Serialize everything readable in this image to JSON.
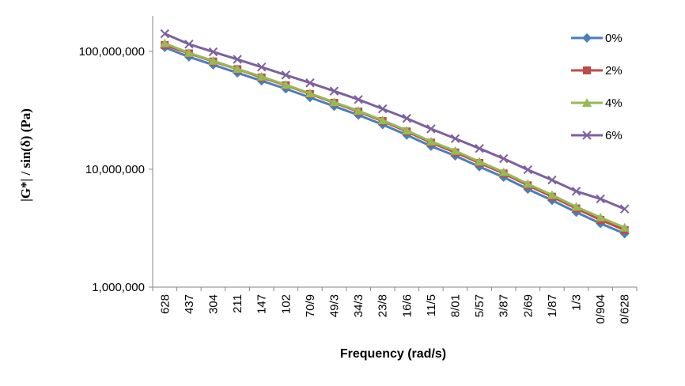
{
  "chart_data": {
    "type": "line",
    "x_label": "Frequency (rad/s)",
    "y_label": "|G*| / sin(δ) (Pa)",
    "categories": [
      "628",
      "437",
      "304",
      "211",
      "147",
      "102",
      "70/9",
      "49/3",
      "34/3",
      "23/8",
      "16/6",
      "11/5",
      "8/01",
      "5/57",
      "3/87",
      "2/69",
      "1/87",
      "1/3",
      "0/904",
      "0/628"
    ],
    "log_y": true,
    "ylim": [
      1000000,
      200000000
    ],
    "yticks": [
      {
        "value": 1000000,
        "label": "1,000,000"
      },
      {
        "value": 10000000,
        "label": "10,000,000"
      },
      {
        "value": 100000000,
        "label": "100,000,000"
      }
    ],
    "grid": false,
    "legend": "top-right",
    "series": [
      {
        "name": "0%",
        "color": "#4a7ebb",
        "marker": "diamond",
        "values": [
          108000000,
          89700000,
          76800000,
          65700000,
          56200000,
          48100000,
          40600000,
          34200000,
          28800000,
          23900000,
          19500000,
          15700000,
          13000000,
          10500000,
          8560000,
          6780000,
          5450000,
          4320000,
          3470000,
          2840000
        ]
      },
      {
        "name": "2%",
        "color": "#be4b48",
        "marker": "square",
        "values": [
          113000000,
          96000000,
          82000000,
          70500000,
          60000000,
          51500000,
          43500000,
          36600000,
          30800000,
          25600000,
          20900000,
          16800000,
          13900000,
          11300000,
          9200000,
          7300000,
          5850000,
          4650000,
          3720000,
          3050000
        ]
      },
      {
        "name": "4%",
        "color": "#98b954",
        "marker": "triangle",
        "values": [
          117000000,
          97000000,
          83000000,
          71000000,
          61000000,
          52000000,
          44000000,
          37000000,
          31300000,
          26000000,
          21300000,
          17200000,
          14300000,
          11600000,
          9450000,
          7500000,
          6050000,
          4800000,
          3900000,
          3200000
        ]
      },
      {
        "name": "6%",
        "color": "#7d60a0",
        "marker": "x",
        "values": [
          141000000,
          115000000,
          99000000,
          85500000,
          73500000,
          63000000,
          54000000,
          46000000,
          39000000,
          32500000,
          27000000,
          22000000,
          18200000,
          15000000,
          12300000,
          9900000,
          8100000,
          6500000,
          5600000,
          4600000
        ]
      }
    ]
  }
}
